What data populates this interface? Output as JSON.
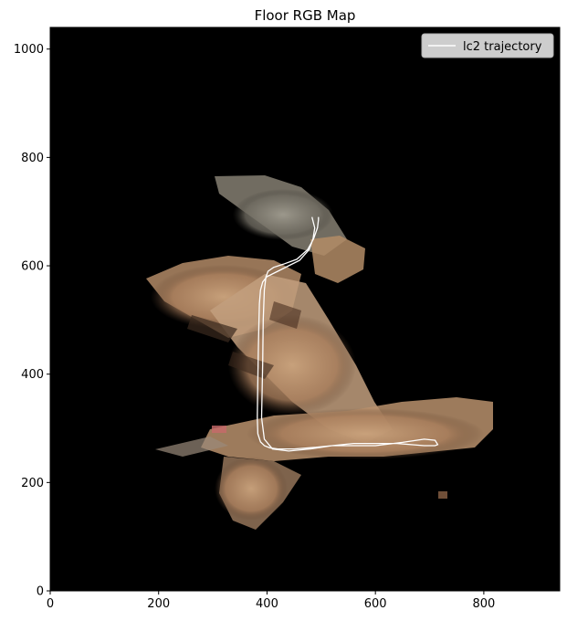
{
  "chart_data": {
    "type": "line",
    "title": "Floor RGB Map",
    "xlabel": "",
    "ylabel": "",
    "xlim": [
      0,
      940
    ],
    "ylim": [
      0,
      1040
    ],
    "xticks": [
      0,
      200,
      400,
      600,
      800
    ],
    "yticks": [
      0,
      200,
      400,
      600,
      800,
      1000
    ],
    "grid": false,
    "legend_position": "top-right",
    "background_color": "#000000",
    "series": [
      {
        "name": "lc2 trajectory",
        "color": "#ffffff",
        "x": [
          483,
          488,
          485,
          478,
          460,
          440,
          420,
          400,
          392,
          388,
          386,
          385,
          384,
          383,
          382,
          383,
          388,
          395,
          405,
          420,
          450,
          490,
          520,
          560,
          600,
          650,
          690,
          710,
          715,
          710,
          690,
          640,
          600,
          560,
          520,
          480,
          440,
          410,
          395,
          390,
          392,
          393,
          395,
          398,
          402,
          412,
          430,
          455,
          475,
          486,
          493,
          495,
          495
        ],
        "y": [
          690,
          670,
          650,
          630,
          610,
          600,
          590,
          580,
          570,
          555,
          530,
          490,
          440,
          390,
          320,
          290,
          275,
          268,
          264,
          262,
          262,
          265,
          268,
          268,
          268,
          274,
          280,
          278,
          270,
          268,
          268,
          272,
          272,
          272,
          268,
          262,
          258,
          262,
          280,
          320,
          420,
          500,
          555,
          580,
          590,
          597,
          603,
          612,
          630,
          650,
          670,
          685,
          690
        ]
      }
    ]
  }
}
